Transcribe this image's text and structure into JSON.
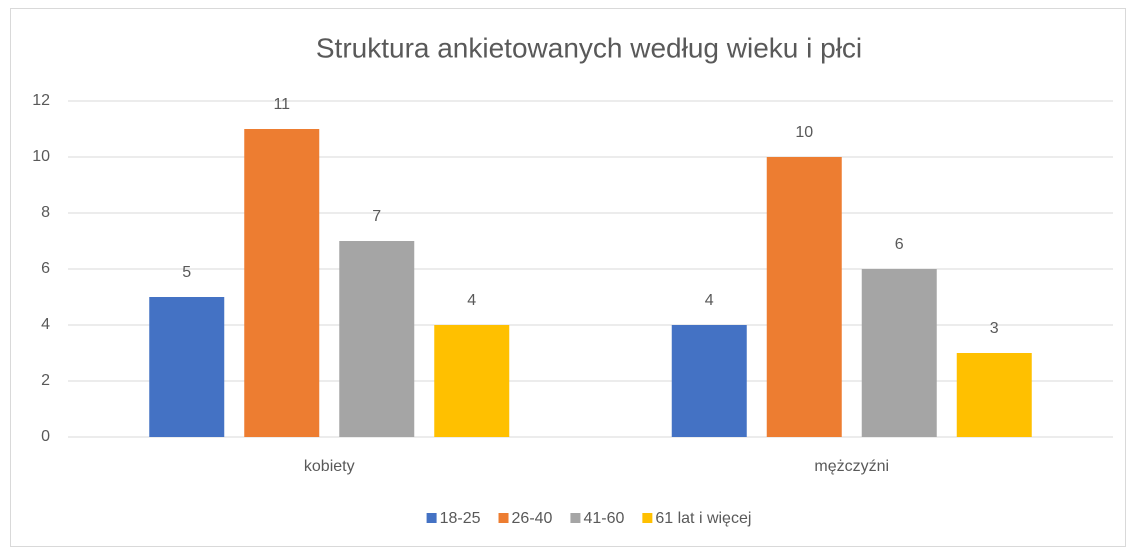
{
  "chart_data": {
    "type": "bar",
    "title": "Struktura ankietowanych według wieku i płci",
    "categories": [
      "kobiety",
      "mężczyźni"
    ],
    "series": [
      {
        "name": "18-25",
        "color": "#4472c4",
        "values": [
          5,
          4
        ]
      },
      {
        "name": "26-40",
        "color": "#ed7d31",
        "values": [
          11,
          10
        ]
      },
      {
        "name": "41-60",
        "color": "#a5a5a5",
        "values": [
          7,
          6
        ]
      },
      {
        "name": "61 lat i więcej",
        "color": "#ffc000",
        "values": [
          4,
          3
        ]
      }
    ],
    "ylim": [
      0,
      12
    ],
    "yticks": [
      0,
      2,
      4,
      6,
      8,
      10,
      12
    ],
    "grid": true,
    "legend": "bottom",
    "data_labels": true
  }
}
